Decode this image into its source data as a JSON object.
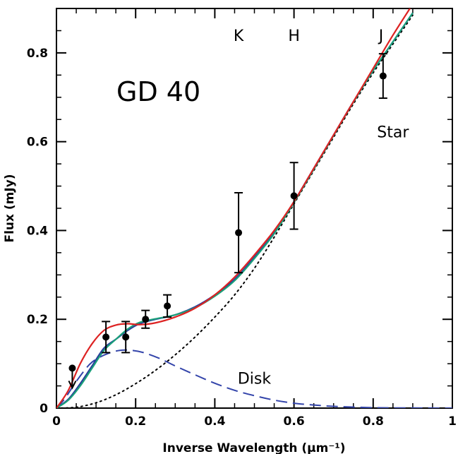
{
  "chart_data": {
    "type": "line",
    "title": "GD 40",
    "xlabel": "Inverse Wavelength (μm⁻¹)",
    "ylabel": "Flux (mJy)",
    "xlim": [
      0,
      1
    ],
    "ylim": [
      0,
      0.9
    ],
    "x_ticks": [
      0,
      0.2,
      0.4,
      0.6,
      0.8,
      1
    ],
    "x_tick_labels": [
      "0",
      "0.2",
      "0.4",
      "0.6",
      "0.8",
      "1"
    ],
    "y_ticks": [
      0,
      0.2,
      0.4,
      0.6,
      0.8
    ],
    "y_tick_labels": [
      "0",
      "0.2",
      "0.4",
      "0.6",
      "0.8"
    ],
    "band_labels": [
      {
        "text": "K",
        "x": 0.46
      },
      {
        "text": "H",
        "x": 0.6
      },
      {
        "text": "J",
        "x": 0.82
      }
    ],
    "annotations": [
      {
        "text": "Star",
        "x": 0.85,
        "y": 0.61
      },
      {
        "text": "Disk",
        "x": 0.5,
        "y": 0.055
      }
    ],
    "series": [
      {
        "name": "",
        "style": "dotted",
        "color": "#000000",
        "points": [
          [
            0,
            0
          ],
          [
            0.05,
            0.002
          ],
          [
            0.1,
            0.012
          ],
          [
            0.15,
            0.03
          ],
          [
            0.2,
            0.055
          ],
          [
            0.25,
            0.085
          ],
          [
            0.3,
            0.12
          ],
          [
            0.35,
            0.16
          ],
          [
            0.4,
            0.205
          ],
          [
            0.45,
            0.255
          ],
          [
            0.5,
            0.315
          ],
          [
            0.55,
            0.385
          ],
          [
            0.6,
            0.46
          ],
          [
            0.65,
            0.535
          ],
          [
            0.7,
            0.61
          ],
          [
            0.75,
            0.685
          ],
          [
            0.8,
            0.755
          ],
          [
            0.85,
            0.82
          ],
          [
            0.9,
            0.885
          ]
        ]
      },
      {
        "name": "",
        "style": "dashed",
        "color": "#3344aa",
        "points": [
          [
            0,
            0
          ],
          [
            0.02,
            0.02
          ],
          [
            0.05,
            0.06
          ],
          [
            0.08,
            0.095
          ],
          [
            0.1,
            0.11
          ],
          [
            0.13,
            0.123
          ],
          [
            0.16,
            0.13
          ],
          [
            0.19,
            0.13
          ],
          [
            0.22,
            0.125
          ],
          [
            0.26,
            0.112
          ],
          [
            0.3,
            0.095
          ],
          [
            0.35,
            0.075
          ],
          [
            0.4,
            0.056
          ],
          [
            0.45,
            0.04
          ],
          [
            0.5,
            0.028
          ],
          [
            0.55,
            0.018
          ],
          [
            0.6,
            0.011
          ],
          [
            0.65,
            0.007
          ],
          [
            0.7,
            0.004
          ],
          [
            0.8,
            0.001
          ],
          [
            0.9,
            0.0003
          ],
          [
            1,
            0
          ]
        ]
      },
      {
        "name": "",
        "style": "solid",
        "color": "#2a3a9a",
        "points": [
          [
            0,
            0
          ],
          [
            0.03,
            0.02
          ],
          [
            0.06,
            0.055
          ],
          [
            0.09,
            0.095
          ],
          [
            0.12,
            0.135
          ],
          [
            0.15,
            0.155
          ],
          [
            0.18,
            0.175
          ],
          [
            0.21,
            0.19
          ],
          [
            0.25,
            0.2
          ],
          [
            0.3,
            0.21
          ],
          [
            0.35,
            0.228
          ],
          [
            0.4,
            0.255
          ],
          [
            0.45,
            0.29
          ],
          [
            0.5,
            0.34
          ],
          [
            0.55,
            0.395
          ],
          [
            0.6,
            0.465
          ],
          [
            0.65,
            0.54
          ],
          [
            0.7,
            0.615
          ],
          [
            0.75,
            0.69
          ],
          [
            0.8,
            0.76
          ],
          [
            0.85,
            0.825
          ],
          [
            0.9,
            0.89
          ]
        ]
      },
      {
        "name": "",
        "style": "solid",
        "color": "#1aa07a",
        "points": [
          [
            0,
            0
          ],
          [
            0.03,
            0.018
          ],
          [
            0.06,
            0.05
          ],
          [
            0.09,
            0.09
          ],
          [
            0.12,
            0.13
          ],
          [
            0.15,
            0.155
          ],
          [
            0.18,
            0.178
          ],
          [
            0.21,
            0.193
          ],
          [
            0.25,
            0.201
          ],
          [
            0.3,
            0.21
          ],
          [
            0.35,
            0.226
          ],
          [
            0.4,
            0.252
          ],
          [
            0.45,
            0.287
          ],
          [
            0.5,
            0.337
          ],
          [
            0.55,
            0.393
          ],
          [
            0.6,
            0.463
          ],
          [
            0.65,
            0.538
          ],
          [
            0.7,
            0.614
          ],
          [
            0.75,
            0.689
          ],
          [
            0.8,
            0.76
          ],
          [
            0.85,
            0.825
          ],
          [
            0.9,
            0.89
          ]
        ]
      },
      {
        "name": "",
        "style": "solid",
        "color": "#dd2222",
        "points": [
          [
            0,
            0
          ],
          [
            0.03,
            0.04
          ],
          [
            0.06,
            0.1
          ],
          [
            0.09,
            0.145
          ],
          [
            0.12,
            0.175
          ],
          [
            0.15,
            0.187
          ],
          [
            0.18,
            0.19
          ],
          [
            0.21,
            0.188
          ],
          [
            0.25,
            0.192
          ],
          [
            0.3,
            0.205
          ],
          [
            0.35,
            0.225
          ],
          [
            0.4,
            0.255
          ],
          [
            0.45,
            0.295
          ],
          [
            0.5,
            0.345
          ],
          [
            0.55,
            0.4
          ],
          [
            0.6,
            0.465
          ],
          [
            0.65,
            0.54
          ],
          [
            0.7,
            0.615
          ],
          [
            0.75,
            0.69
          ],
          [
            0.8,
            0.765
          ],
          [
            0.85,
            0.84
          ],
          [
            0.9,
            0.91
          ]
        ]
      }
    ],
    "data_points": [
      {
        "x": 0.04,
        "y": 0.09,
        "upper_limit": true
      },
      {
        "x": 0.125,
        "y": 0.16,
        "err": 0.035
      },
      {
        "x": 0.175,
        "y": 0.16,
        "err": 0.035
      },
      {
        "x": 0.225,
        "y": 0.2,
        "err": 0.02
      },
      {
        "x": 0.28,
        "y": 0.23,
        "err": 0.025
      },
      {
        "x": 0.46,
        "y": 0.395,
        "err": 0.09
      },
      {
        "x": 0.6,
        "y": 0.478,
        "err": 0.075
      },
      {
        "x": 0.825,
        "y": 0.748,
        "err": 0.05
      }
    ]
  }
}
